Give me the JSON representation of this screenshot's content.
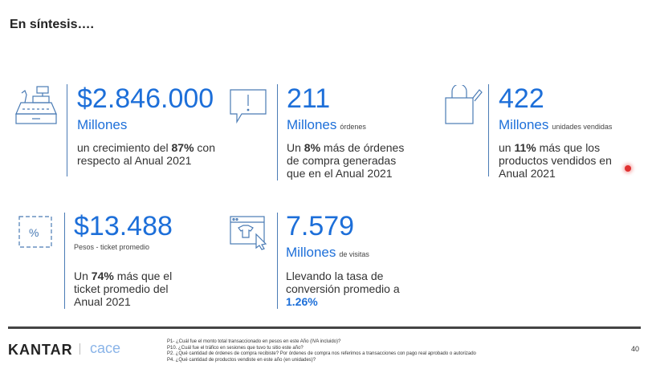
{
  "title": "En síntesis….",
  "cards": [
    {
      "icon": "cash-register-icon",
      "value": "$2.846.000",
      "unit": "Millones",
      "unit_note": "",
      "desc_pre": "un crecimiento del ",
      "desc_bold": "87%",
      "desc_post": " con respecto al Anual 2021"
    },
    {
      "icon": "speech-bubble-exclamation-icon",
      "value": "211",
      "unit": "Millones",
      "unit_note": "órdenes",
      "desc_pre": "Un ",
      "desc_bold": "8%",
      "desc_post": " más de órdenes de compra generadas que en el Anual 2021"
    },
    {
      "icon": "shopping-bag-icon",
      "value": "422",
      "unit": "Millones",
      "unit_note": "unidades vendidas",
      "desc_pre": "un ",
      "desc_bold": "11%",
      "desc_post": " más que los productos vendidos en Anual 2021"
    },
    {
      "icon": "percent-tag-icon",
      "value": "$13.488",
      "sub": "Pesos - ticket promedio",
      "desc_pre": "Un ",
      "desc_bold": "74%",
      "desc_post": " más que el ticket promedio del Anual 2021"
    },
    {
      "icon": "browser-click-icon",
      "value": "7.579",
      "unit": "Millones",
      "unit_note": "de visitas",
      "desc_pre": "Llevando la tasa de conversión promedio a ",
      "desc_bold": "1.26%",
      "desc_post": ""
    }
  ],
  "footer": {
    "kantar": "KANTAR",
    "cace": "cace",
    "notes": [
      "P1- ¿Cuál fue el monto total transaccionado en pesos en este Año (IVA incluido)?",
      "P10. ¿Cuál fue el tráfico en sesiones que tuvo tu sitio este año?",
      "P2. ¿Qué cantidad de órdenes de compra recibiste? Por órdenes de compra nos referimos a transacciones con pago real aprobado o autorizado",
      "P4. ¿Qué cantidad de productos vendiste en este año (en unidades)?"
    ],
    "page": "40"
  },
  "colors": {
    "accent": "#1d6fd9"
  }
}
